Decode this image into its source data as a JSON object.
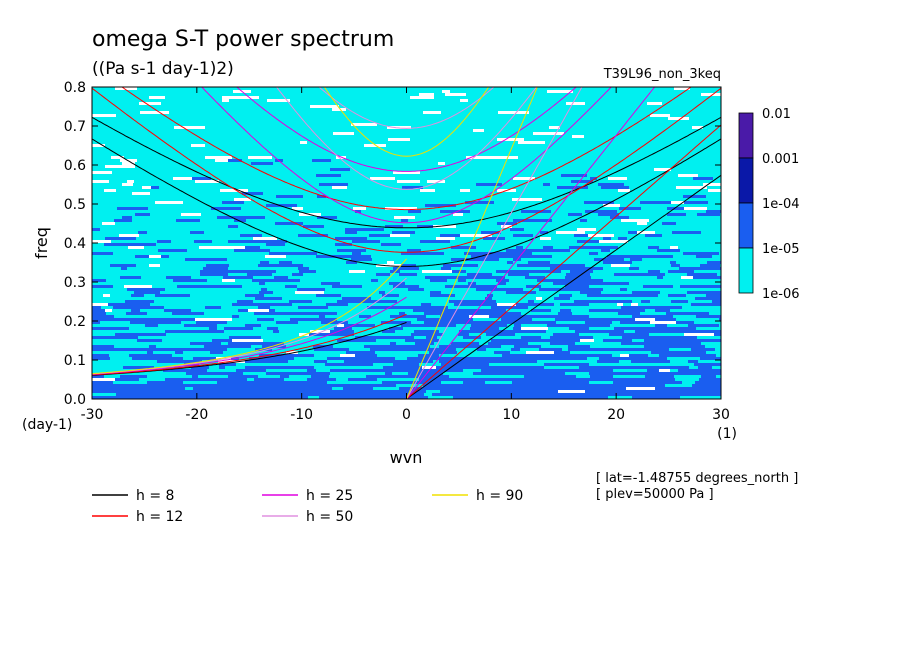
{
  "title": "omega S-T power spectrum",
  "units": "((Pa s-1 day-1)2)",
  "run_label": "T39L96_non_3keq",
  "info_lines": [
    "[ lat=-1.48755 degrees_north ]",
    "[ plev=50000 Pa ]"
  ],
  "chart_data": {
    "type": "heatmap",
    "title": "omega S-T power spectrum",
    "xlabel": "wvn",
    "ylabel": "freq",
    "x_units": "(1)",
    "y_units": "(day-1)",
    "xlim": [
      -30,
      30
    ],
    "ylim": [
      0,
      0.8
    ],
    "x_ticks": [
      "-30",
      "-20",
      "-10",
      "0",
      "10",
      "20",
      "30"
    ],
    "y_ticks": [
      "0.0",
      "0.1",
      "0.2",
      "0.3",
      "0.4",
      "0.5",
      "0.6",
      "0.7",
      "0.8"
    ],
    "colorbar": {
      "levels": [
        "0.01",
        "0.001",
        "1e-04",
        "1e-05",
        "1e-06"
      ],
      "colors": [
        "#4a1aa8",
        "#0a18a8",
        "#1a5ef0",
        "#00f0f0",
        "#ffffff"
      ]
    },
    "series": [
      {
        "name": "h =  8",
        "color": "#000000",
        "h": 8
      },
      {
        "name": "h = 12",
        "color": "#ff0000",
        "h": 12
      },
      {
        "name": "h = 25",
        "color": "#e000e0",
        "h": 25
      },
      {
        "name": "h = 50",
        "color": "#e090e0",
        "h": 50
      },
      {
        "name": "h = 90",
        "color": "#f0e000",
        "h": 90
      }
    ],
    "grid": false,
    "legend_position": "bottom-left"
  }
}
